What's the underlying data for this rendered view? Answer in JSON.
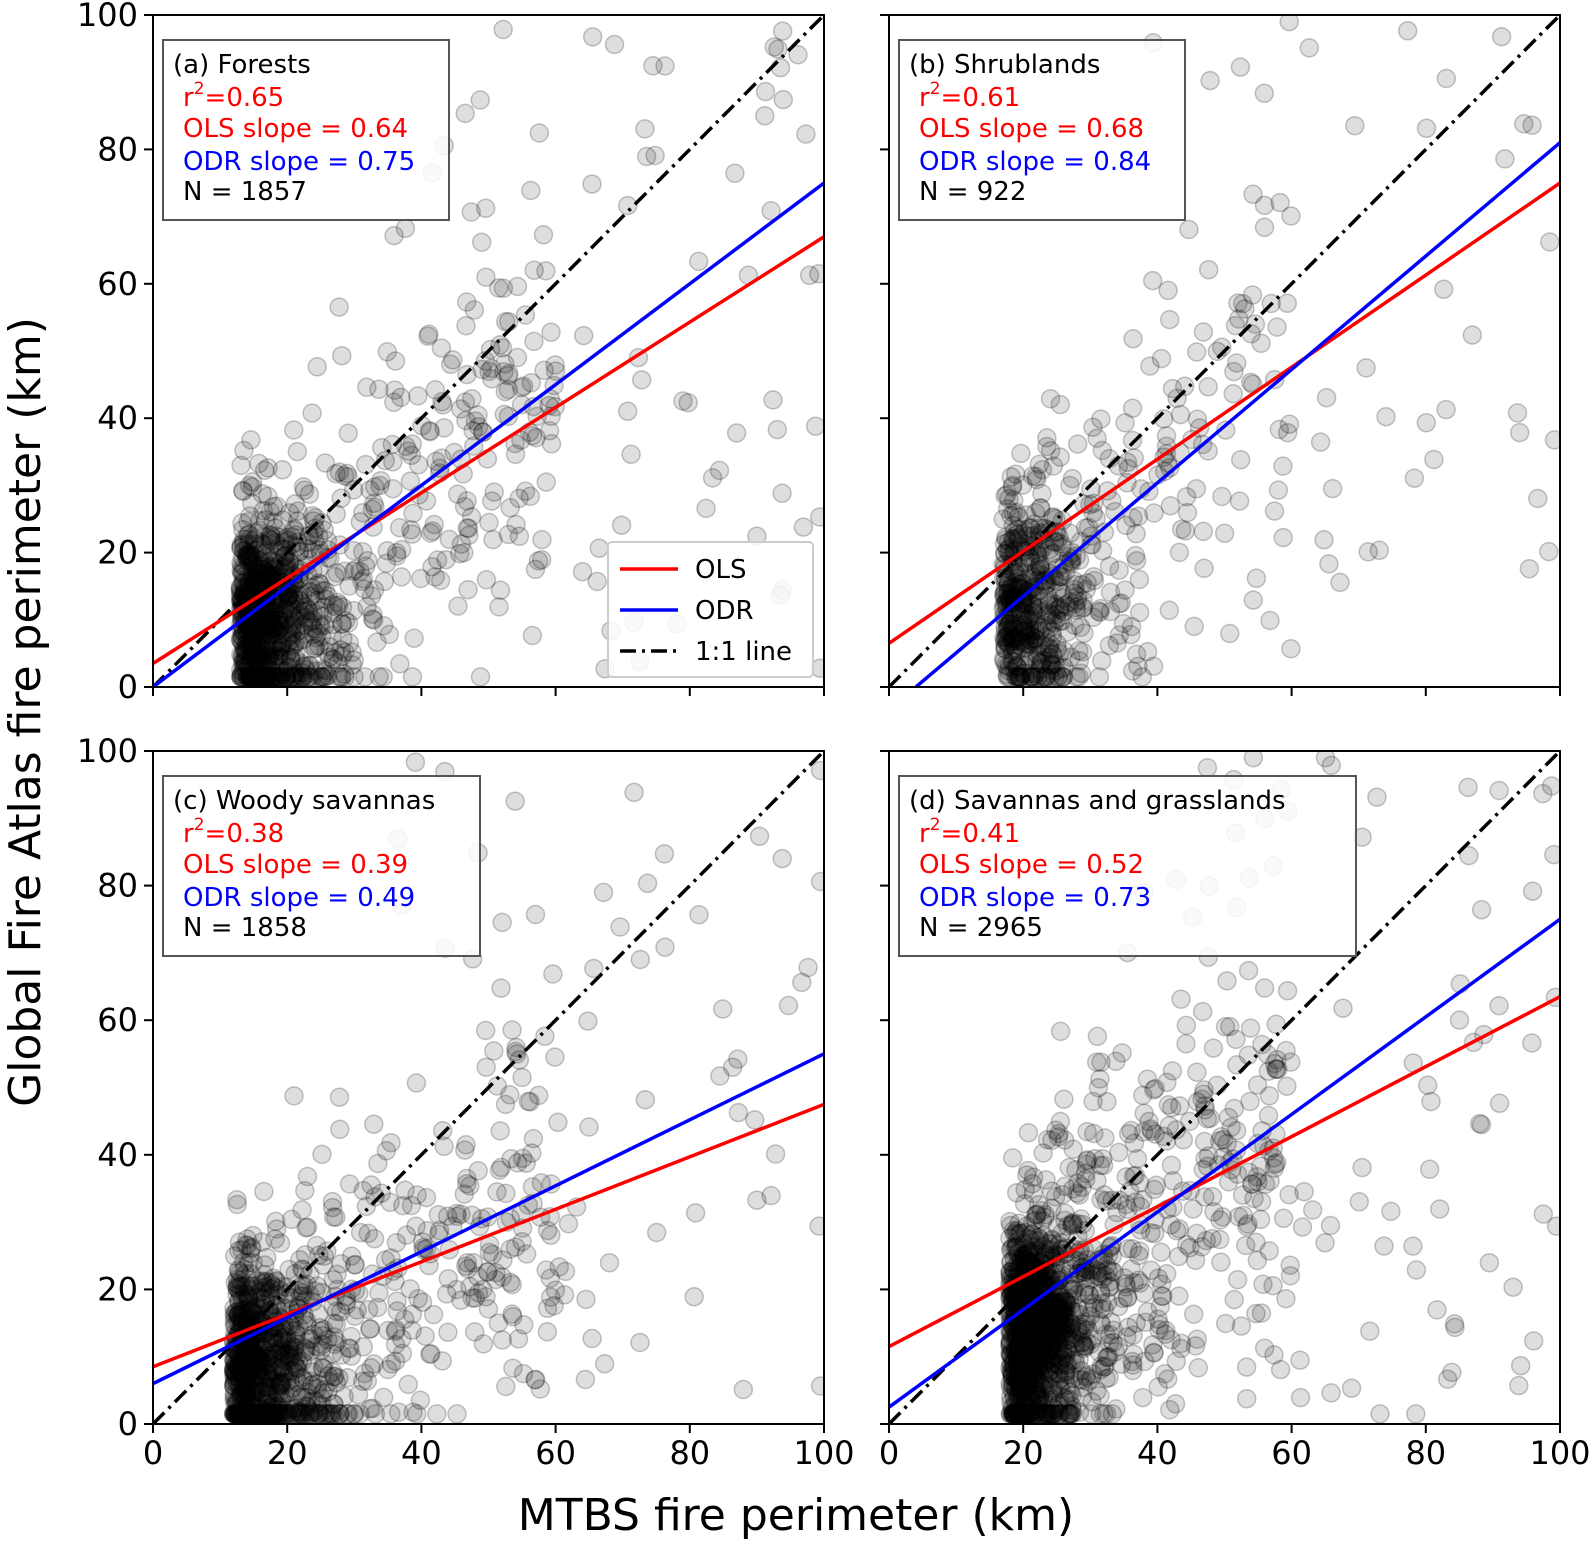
{
  "figure": {
    "xlabel": "MTBS fire perimeter (km)",
    "ylabel": "Global Fire Atlas fire perimeter (km)"
  },
  "colors": {
    "ols": "#ff0000",
    "odr": "#0000ff",
    "one_to_one": "#000000",
    "points": "#000000"
  },
  "legend": {
    "entries": [
      {
        "label": "OLS",
        "series": "ols"
      },
      {
        "label": "ODR",
        "series": "odr"
      },
      {
        "label": "1:1 line",
        "series": "one_to_one"
      }
    ]
  },
  "chart_data": [
    {
      "type": "scatter",
      "panel": "a",
      "title": "(a) Forests",
      "r2_label": "r",
      "r2_sup": "2",
      "r2_value": "=0.65",
      "ols_label": "OLS slope = 0.64",
      "odr_label": "ODR slope = 0.75",
      "n_label": "N = 1857",
      "xlim": [
        0,
        100
      ],
      "ylim": [
        0,
        100
      ],
      "xticks": [
        0,
        20,
        40,
        60,
        80,
        100
      ],
      "yticks": [
        0,
        20,
        40,
        60,
        80,
        100
      ],
      "ols_line": {
        "x": [
          0,
          100
        ],
        "y": [
          3.5,
          67
        ]
      },
      "odr_line": {
        "x": [
          0,
          100
        ],
        "y": [
          0,
          75
        ]
      },
      "one_to_one": {
        "x": [
          0,
          100
        ],
        "y": [
          0,
          100
        ]
      },
      "scatter_seed": 11,
      "scatter_n": 1100,
      "scatter_center": [
        13,
        11
      ]
    },
    {
      "type": "scatter",
      "panel": "b",
      "title": "(b) Shrublands",
      "r2_label": "r",
      "r2_sup": "2",
      "r2_value": "=0.61",
      "ols_label": "OLS slope = 0.68",
      "odr_label": "ODR slope = 0.84",
      "n_label": "N = 922",
      "xlim": [
        0,
        100
      ],
      "ylim": [
        0,
        100
      ],
      "xticks": [
        0,
        20,
        40,
        60,
        80,
        100
      ],
      "yticks": [
        0,
        20,
        40,
        60,
        80,
        100
      ],
      "ols_line": {
        "x": [
          0,
          100
        ],
        "y": [
          6.5,
          75
        ]
      },
      "odr_line": {
        "x": [
          4,
          100
        ],
        "y": [
          0,
          81
        ]
      },
      "one_to_one": {
        "x": [
          0,
          100
        ],
        "y": [
          0,
          100
        ]
      },
      "scatter_seed": 22,
      "scatter_n": 650,
      "scatter_center": [
        17,
        13
      ]
    },
    {
      "type": "scatter",
      "panel": "c",
      "title": "(c) Woody savannas",
      "r2_label": "r",
      "r2_sup": "2",
      "r2_value": "=0.38",
      "ols_label": "OLS slope = 0.39",
      "odr_label": "ODR slope = 0.49",
      "n_label": "N = 1858",
      "xlim": [
        0,
        100
      ],
      "ylim": [
        0,
        100
      ],
      "xticks": [
        0,
        20,
        40,
        60,
        80,
        100
      ],
      "yticks": [
        0,
        20,
        40,
        60,
        80,
        100
      ],
      "ols_line": {
        "x": [
          0,
          100
        ],
        "y": [
          8.5,
          47.5
        ]
      },
      "odr_line": {
        "x": [
          0,
          100
        ],
        "y": [
          6,
          55
        ]
      },
      "one_to_one": {
        "x": [
          0,
          100
        ],
        "y": [
          0,
          100
        ]
      },
      "scatter_seed": 33,
      "scatter_n": 1100,
      "scatter_center": [
        12,
        9
      ]
    },
    {
      "type": "scatter",
      "panel": "d",
      "title": "(d) Savannas and grasslands",
      "r2_label": "r",
      "r2_sup": "2",
      "r2_value": "=0.41",
      "ols_label": "OLS slope = 0.52",
      "odr_label": "ODR slope = 0.73",
      "n_label": "N = 2965",
      "xlim": [
        0,
        100
      ],
      "ylim": [
        0,
        100
      ],
      "xticks": [
        0,
        20,
        40,
        60,
        80,
        100
      ],
      "yticks": [
        0,
        20,
        40,
        60,
        80,
        100
      ],
      "ols_line": {
        "x": [
          0,
          100
        ],
        "y": [
          11.5,
          63.5
        ]
      },
      "odr_line": {
        "x": [
          0,
          100
        ],
        "y": [
          2.5,
          75
        ]
      },
      "one_to_one": {
        "x": [
          0,
          100
        ],
        "y": [
          0,
          100
        ]
      },
      "scatter_seed": 44,
      "scatter_n": 1500,
      "scatter_center": [
        18,
        14
      ]
    }
  ]
}
